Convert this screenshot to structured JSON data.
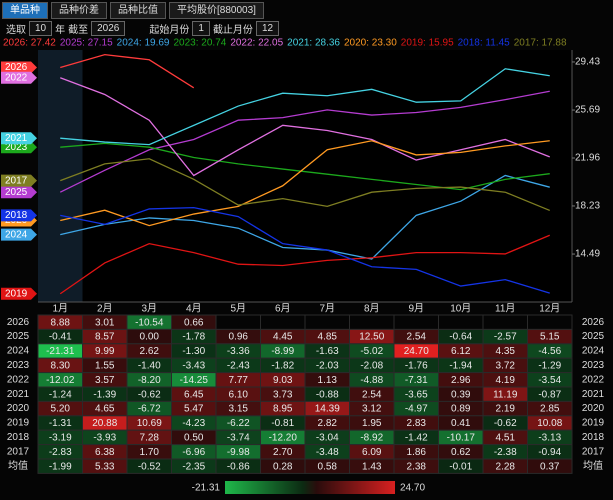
{
  "toolbar": {
    "tabs": [
      "单品种",
      "品种价差",
      "品种比值",
      "平均股价[880003]"
    ],
    "select_label": "选取",
    "years": 10,
    "years_unit": "年",
    "until_label": "截至",
    "until": 2026,
    "start_label": "起始月份",
    "start": 1,
    "end_label": "截止月份",
    "end": 12
  },
  "chart_data": {
    "type": "line",
    "categories": [
      "1月",
      "2月",
      "3月",
      "4月",
      "5月",
      "6月",
      "7月",
      "8月",
      "9月",
      "10月",
      "11月",
      "12月"
    ],
    "ylim": [
      10.76,
      30.36
    ],
    "yticks": [
      29.43,
      25.69,
      21.96,
      18.23,
      14.49
    ],
    "series": [
      {
        "name": "2026",
        "label": "2026: 27.42",
        "color": "#ff3b3b",
        "values": [
          29.0,
          30.0,
          29.6,
          27.42,
          null,
          null,
          null,
          null,
          null,
          null,
          null,
          null
        ]
      },
      {
        "name": "2025",
        "label": "2025: 27.15",
        "color": "#b43cd0",
        "values": [
          19.3,
          21.0,
          22.6,
          23.4,
          24.9,
          25.1,
          25.7,
          25.3,
          25.5,
          25.9,
          26.5,
          27.15
        ]
      },
      {
        "name": "2024",
        "label": "2024: 19.69",
        "color": "#3ea6e6",
        "values": [
          16.0,
          16.8,
          17.3,
          17.1,
          16.5,
          15.0,
          14.8,
          14.1,
          17.5,
          18.6,
          20.6,
          19.69
        ]
      },
      {
        "name": "2023",
        "label": "2023: 20.74",
        "color": "#1ca81c",
        "values": [
          22.8,
          23.1,
          22.8,
          22.0,
          21.5,
          21.1,
          20.7,
          20.3,
          19.9,
          19.5,
          20.3,
          20.74
        ]
      },
      {
        "name": "2022",
        "label": "2022: 22.05",
        "color": "#e070e0",
        "values": [
          28.2,
          26.9,
          24.9,
          20.6,
          22.6,
          24.5,
          24.1,
          23.4,
          21.8,
          22.6,
          23.4,
          22.05
        ]
      },
      {
        "name": "2021",
        "label": "2021: 28.36",
        "color": "#45d2e2",
        "values": [
          23.5,
          23.2,
          23.0,
          24.5,
          26.0,
          27.0,
          26.8,
          27.3,
          26.3,
          26.4,
          28.9,
          28.36
        ]
      },
      {
        "name": "2020",
        "label": "2020: 23.30",
        "color": "#ff9a22",
        "values": [
          17.1,
          17.9,
          16.7,
          17.6,
          18.2,
          19.8,
          22.6,
          23.3,
          22.2,
          22.4,
          22.9,
          23.3
        ]
      },
      {
        "name": "2019",
        "label": "2019: 15.95",
        "color": "#e01414",
        "values": [
          11.4,
          13.8,
          15.3,
          14.6,
          13.7,
          13.6,
          14.0,
          14.2,
          14.6,
          14.6,
          14.5,
          15.95
        ]
      },
      {
        "name": "2018",
        "label": "2018: 11.45",
        "color": "#1434e6",
        "values": [
          17.5,
          16.8,
          18.0,
          18.1,
          17.4,
          15.3,
          14.8,
          13.5,
          13.3,
          12.0,
          12.5,
          11.45
        ]
      },
      {
        "name": "2017",
        "label": "2017: 17.88",
        "color": "#7e7e22",
        "values": [
          20.2,
          21.5,
          21.9,
          20.3,
          18.3,
          18.8,
          18.2,
          19.3,
          19.6,
          19.7,
          19.3,
          17.88
        ]
      }
    ]
  },
  "table": {
    "row_labels": [
      "2026",
      "2025",
      "2024",
      "2023",
      "2022",
      "2021",
      "2020",
      "2019",
      "2018",
      "2017",
      "均值"
    ],
    "rows": [
      [
        "8.88",
        "3.01",
        "-10.54",
        "0.66",
        null,
        null,
        null,
        null,
        null,
        null,
        null,
        null
      ],
      [
        "-0.41",
        "8.57",
        "0.00",
        "-1.78",
        "0.96",
        "4.45",
        "4.85",
        "12.50",
        "2.54",
        "-0.64",
        "-2.57",
        "5.15"
      ],
      [
        "-21.31",
        "9.99",
        "2.62",
        "-1.30",
        "-3.36",
        "-8.99",
        "-1.63",
        "-5.02",
        "24.70",
        "6.12",
        "4.35",
        "-4.56"
      ],
      [
        "8.30",
        "1.55",
        "-1.40",
        "-3.43",
        "-2.43",
        "-1.82",
        "-2.03",
        "-2.08",
        "-1.76",
        "-1.94",
        "3.72",
        "-1.29"
      ],
      [
        "-12.02",
        "3.57",
        "-8.20",
        "-14.25",
        "7.77",
        "9.03",
        "1.13",
        "-4.88",
        "-7.31",
        "2.96",
        "4.19",
        "-3.54"
      ],
      [
        "-1.24",
        "-1.39",
        "-0.62",
        "6.45",
        "6.10",
        "3.73",
        "-0.88",
        "2.54",
        "-3.65",
        "0.39",
        "11.19",
        "-0.87"
      ],
      [
        "5.20",
        "4.65",
        "-6.72",
        "5.47",
        "3.15",
        "8.95",
        "14.39",
        "3.12",
        "-4.97",
        "0.89",
        "2.19",
        "2.85"
      ],
      [
        "-1.31",
        "20.88",
        "10.69",
        "-4.23",
        "-6.22",
        "-0.81",
        "2.82",
        "1.95",
        "2.83",
        "0.41",
        "-0.62",
        "10.08"
      ],
      [
        "-3.19",
        "-3.93",
        "7.28",
        "0.50",
        "-3.74",
        "-12.20",
        "-3.04",
        "-8.92",
        "-1.42",
        "-10.17",
        "4.51",
        "-3.13"
      ],
      [
        "-2.83",
        "6.38",
        "1.70",
        "-6.96",
        "-9.98",
        "2.70",
        "-3.48",
        "6.09",
        "1.86",
        "0.62",
        "-2.38",
        "-0.94"
      ],
      [
        "-1.99",
        "5.33",
        "-0.52",
        "-2.35",
        "-0.86",
        "0.28",
        "0.58",
        "1.43",
        "2.38",
        "-0.01",
        "2.28",
        "0.37"
      ]
    ],
    "scale": {
      "min": "-21.31",
      "max": "24.70"
    }
  }
}
